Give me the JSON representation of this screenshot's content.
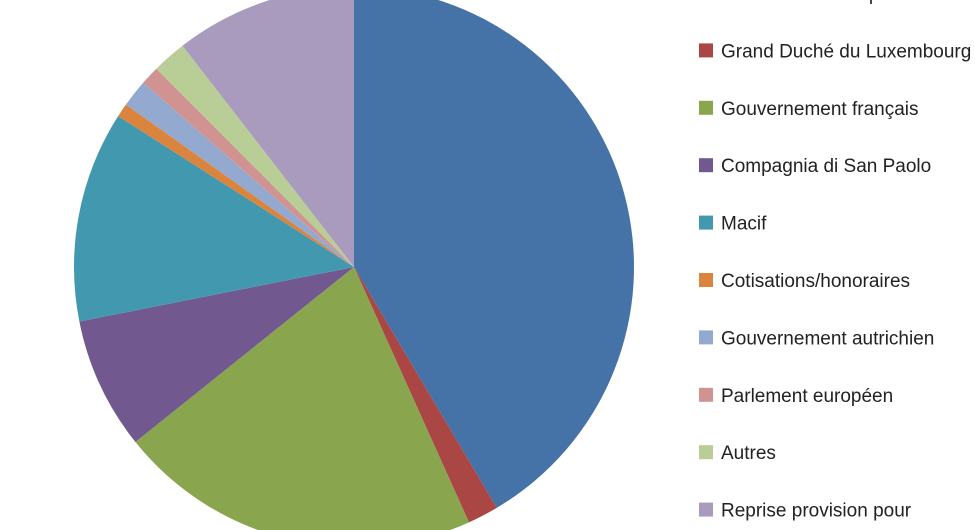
{
  "chart_data": {
    "type": "pie",
    "categories": [
      "Commission européenne",
      "Grand Duché du Luxembourg",
      "Gouvernement français",
      "Compagnia di San Paolo",
      "Macif",
      "Cotisations/honoraires",
      "Gouvernement autrichien",
      "Parlement européen",
      "Autres",
      "Reprise provision pour"
    ],
    "values": [
      41.9,
      1.8,
      21.2,
      7.7,
      12.3,
      0.8,
      1.6,
      1.1,
      2.0,
      10.6
    ],
    "colors": [
      "#4572A7",
      "#AA4643",
      "#89A54E",
      "#71588F",
      "#4198AF",
      "#DB843D",
      "#93A9CF",
      "#D19392",
      "#B9CD96",
      "#A99BBD"
    ],
    "start": "12 o'clock",
    "direction": "clockwise",
    "legend_position": "right"
  }
}
